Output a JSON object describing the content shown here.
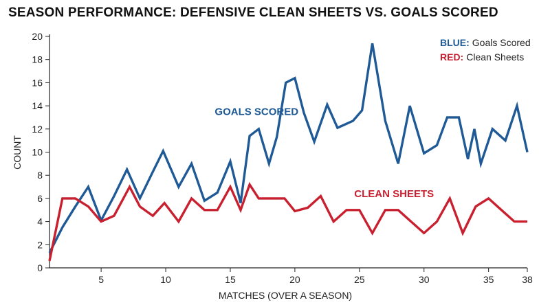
{
  "chart_data": {
    "type": "line",
    "title": "SEASON PERFORMANCE: DEFENSIVE CLEAN SHEETS VS. GOALS SCORED",
    "xlabel": "MATCHES (OVER A SEASON)",
    "ylabel": "COUNT",
    "xlim": [
      1,
      38
    ],
    "ylim": [
      0,
      20
    ],
    "xticks": [
      5,
      10,
      15,
      20,
      25,
      30,
      35,
      38
    ],
    "yticks": [
      0,
      2,
      4,
      6,
      8,
      10,
      12,
      14,
      16,
      18,
      20
    ],
    "grid": false,
    "legend": [
      {
        "key": "BLUE:",
        "text": "Goals Scored",
        "color": "#1f5a96"
      },
      {
        "key": "RED:",
        "text": "Clean Sheets",
        "color": "#c8202f"
      }
    ],
    "legend_position": "top-right",
    "annotations": [
      {
        "text": "GOALS SCORED",
        "color": "#1f5a96",
        "x": 13.8,
        "y": 13.2
      },
      {
        "text": "CLEAN SHEETS",
        "color": "#c8202f",
        "x": 24.6,
        "y": 6.1
      }
    ],
    "series": [
      {
        "color": "#1f5a96",
        "points": [
          [
            1,
            1.3
          ],
          [
            2,
            3.5
          ],
          [
            3,
            5.3
          ],
          [
            4,
            7.0
          ],
          [
            5,
            4.1
          ],
          [
            6,
            6.2
          ],
          [
            7,
            8.5
          ],
          [
            8,
            6.0
          ],
          [
            9,
            8.3
          ],
          [
            9.8,
            10.1
          ],
          [
            11,
            7.0
          ],
          [
            12,
            9.0
          ],
          [
            13,
            5.8
          ],
          [
            14,
            6.5
          ],
          [
            15,
            9.2
          ],
          [
            15.8,
            5.6
          ],
          [
            16.5,
            11.4
          ],
          [
            17.2,
            12.0
          ],
          [
            18,
            9.0
          ],
          [
            18.6,
            11.3
          ],
          [
            19.3,
            16.0
          ],
          [
            20,
            16.4
          ],
          [
            20.7,
            13.4
          ],
          [
            21.5,
            10.9
          ],
          [
            22.5,
            14.1
          ],
          [
            23.3,
            12.1
          ],
          [
            24.5,
            12.7
          ],
          [
            25.2,
            13.6
          ],
          [
            26,
            19.4
          ],
          [
            27,
            12.7
          ],
          [
            28,
            9.0
          ],
          [
            28.9,
            14.0
          ],
          [
            30,
            9.9
          ],
          [
            31,
            10.6
          ],
          [
            31.8,
            13.0
          ],
          [
            32.7,
            13.0
          ],
          [
            33.4,
            9.4
          ],
          [
            33.9,
            12.0
          ],
          [
            34.4,
            9.0
          ],
          [
            35.3,
            12.0
          ],
          [
            36.3,
            11.0
          ],
          [
            37.2,
            14.0
          ],
          [
            38,
            10.0
          ]
        ]
      },
      {
        "color": "#c8202f",
        "points": [
          [
            1,
            0.6
          ],
          [
            2,
            6.0
          ],
          [
            3,
            6.0
          ],
          [
            4,
            5.3
          ],
          [
            5,
            4.0
          ],
          [
            6,
            4.5
          ],
          [
            7.2,
            7.0
          ],
          [
            8,
            5.3
          ],
          [
            9,
            4.5
          ],
          [
            9.9,
            5.6
          ],
          [
            11,
            4.0
          ],
          [
            12,
            6.0
          ],
          [
            13,
            5.0
          ],
          [
            14,
            5.0
          ],
          [
            15,
            7.0
          ],
          [
            15.8,
            5.0
          ],
          [
            16.5,
            7.2
          ],
          [
            17.2,
            6.0
          ],
          [
            18,
            6.0
          ],
          [
            19.2,
            6.0
          ],
          [
            20,
            4.9
          ],
          [
            21,
            5.2
          ],
          [
            22,
            6.2
          ],
          [
            23,
            4.0
          ],
          [
            24,
            5.0
          ],
          [
            25,
            5.0
          ],
          [
            26,
            3.0
          ],
          [
            27,
            5.0
          ],
          [
            28,
            5.0
          ],
          [
            29,
            4.0
          ],
          [
            30,
            3.0
          ],
          [
            31,
            4.0
          ],
          [
            32,
            6.0
          ],
          [
            33,
            3.0
          ],
          [
            34,
            5.3
          ],
          [
            35,
            6.0
          ],
          [
            36,
            5.0
          ],
          [
            37,
            4.0
          ],
          [
            38,
            4.0
          ]
        ]
      }
    ]
  }
}
